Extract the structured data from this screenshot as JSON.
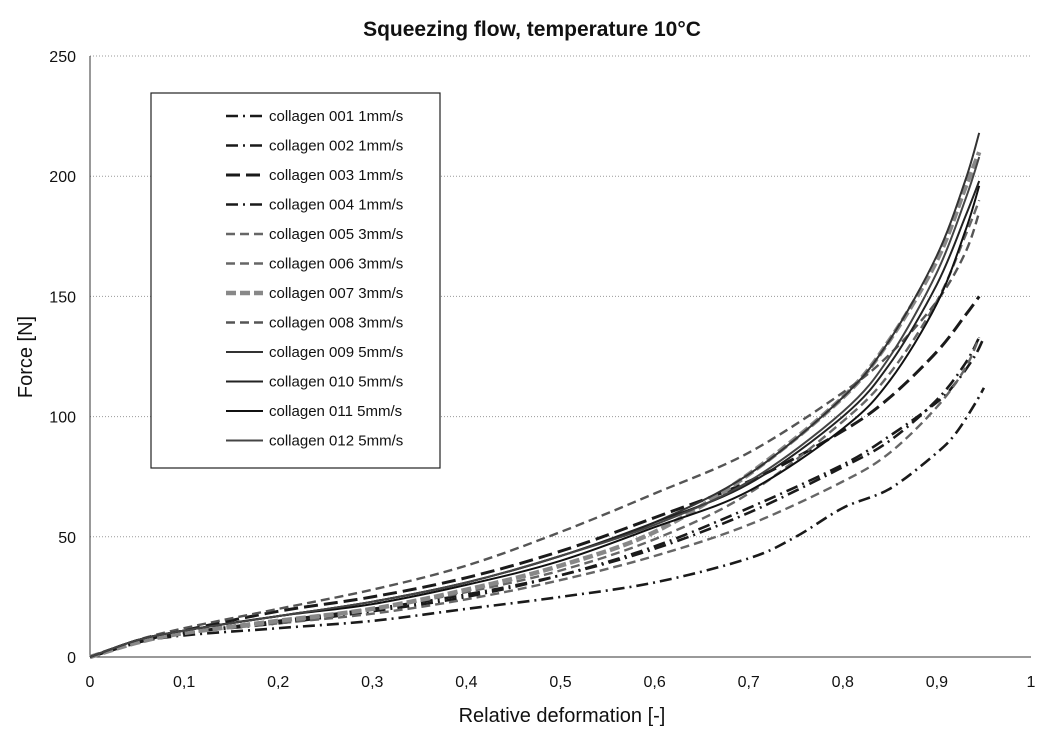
{
  "chart_data": {
    "type": "line",
    "title": "Squeezing flow, temperature 10°C",
    "xlabel": "Relative deformation [-]",
    "ylabel": "Force [N]",
    "xlim": [
      0,
      1
    ],
    "ylim": [
      0,
      250
    ],
    "xticks": [
      "0",
      "0,1",
      "0,2",
      "0,3",
      "0,4",
      "0,5",
      "0,6",
      "0,7",
      "0,8",
      "0,9",
      "1"
    ],
    "yticks": [
      "0",
      "50",
      "100",
      "150",
      "200",
      "250"
    ],
    "grid": "horizontal dotted",
    "legend_position": "top-left",
    "series": [
      {
        "name": "collagen 001 1mm/s",
        "color": "#1a1a1a",
        "style": "dash-dot",
        "x": [
          0,
          0.05,
          0.1,
          0.2,
          0.3,
          0.4,
          0.5,
          0.6,
          0.7,
          0.75,
          0.8,
          0.85,
          0.9,
          0.92,
          0.94,
          0.95
        ],
        "y": [
          0,
          6,
          9,
          12,
          15,
          20,
          25,
          31,
          41,
          50,
          62,
          70,
          85,
          93,
          105,
          112
        ]
      },
      {
        "name": "collagen 002 1mm/s",
        "color": "#1a1a1a",
        "style": "dash-dot",
        "x": [
          0,
          0.05,
          0.1,
          0.2,
          0.3,
          0.4,
          0.5,
          0.6,
          0.7,
          0.8,
          0.85,
          0.9,
          0.92,
          0.94,
          0.95
        ],
        "y": [
          0,
          6,
          10,
          14,
          19,
          25,
          34,
          46,
          62,
          80,
          92,
          106,
          114,
          125,
          133
        ]
      },
      {
        "name": "collagen 003 1mm/s",
        "color": "#1a1a1a",
        "style": "long-dash",
        "x": [
          0,
          0.05,
          0.1,
          0.2,
          0.3,
          0.4,
          0.5,
          0.6,
          0.7,
          0.8,
          0.85,
          0.9,
          0.93,
          0.945
        ],
        "y": [
          0,
          6,
          11,
          19,
          25,
          33,
          44,
          58,
          73,
          94,
          108,
          127,
          142,
          150
        ]
      },
      {
        "name": "collagen 004 1mm/s",
        "color": "#1a1a1a",
        "style": "dash-dot",
        "x": [
          0,
          0.05,
          0.1,
          0.2,
          0.3,
          0.4,
          0.5,
          0.6,
          0.7,
          0.8,
          0.85,
          0.9,
          0.93,
          0.945
        ],
        "y": [
          0,
          6,
          10,
          15,
          20,
          26,
          34,
          45,
          60,
          79,
          90,
          107,
          122,
          133
        ]
      },
      {
        "name": "collagen 005 3mm/s",
        "color": "#666666",
        "style": "dashed",
        "x": [
          0,
          0.05,
          0.1,
          0.2,
          0.3,
          0.4,
          0.5,
          0.6,
          0.7,
          0.8,
          0.85,
          0.9,
          0.93,
          0.945
        ],
        "y": [
          0,
          6,
          10,
          14,
          18,
          24,
          32,
          42,
          55,
          73,
          85,
          104,
          120,
          133
        ]
      },
      {
        "name": "collagen 006 3mm/s",
        "color": "#666666",
        "style": "dashed",
        "x": [
          0,
          0.05,
          0.1,
          0.2,
          0.3,
          0.4,
          0.5,
          0.6,
          0.7,
          0.8,
          0.85,
          0.9,
          0.93,
          0.945
        ],
        "y": [
          0,
          6,
          10,
          15,
          20,
          27,
          36,
          49,
          68,
          98,
          118,
          148,
          175,
          190
        ]
      },
      {
        "name": "collagen 007 3mm/s",
        "color": "#888888",
        "style": "thick-dashed",
        "x": [
          0,
          0.05,
          0.1,
          0.2,
          0.3,
          0.4,
          0.5,
          0.6,
          0.7,
          0.8,
          0.85,
          0.9,
          0.93,
          0.945
        ],
        "y": [
          0,
          6,
          10,
          15,
          20,
          28,
          38,
          52,
          76,
          108,
          132,
          165,
          195,
          210
        ]
      },
      {
        "name": "collagen 008 3mm/s",
        "color": "#555555",
        "style": "dashed",
        "x": [
          0,
          0.05,
          0.1,
          0.2,
          0.3,
          0.4,
          0.5,
          0.6,
          0.7,
          0.8,
          0.85,
          0.9,
          0.93,
          0.945
        ],
        "y": [
          0,
          7,
          12,
          20,
          28,
          38,
          52,
          68,
          85,
          110,
          126,
          148,
          168,
          185
        ]
      },
      {
        "name": "collagen 009 5mm/s",
        "color": "#333333",
        "style": "solid",
        "x": [
          0,
          0.05,
          0.1,
          0.2,
          0.3,
          0.4,
          0.5,
          0.6,
          0.7,
          0.8,
          0.85,
          0.9,
          0.93,
          0.945
        ],
        "y": [
          0,
          7,
          11,
          17,
          23,
          31,
          42,
          56,
          76,
          108,
          132,
          167,
          198,
          218
        ]
      },
      {
        "name": "collagen 010 5mm/s",
        "color": "#222222",
        "style": "solid",
        "x": [
          0,
          0.05,
          0.1,
          0.2,
          0.3,
          0.4,
          0.5,
          0.6,
          0.7,
          0.8,
          0.85,
          0.9,
          0.93,
          0.945
        ],
        "y": [
          0,
          7,
          11,
          17,
          23,
          31,
          42,
          56,
          72,
          100,
          122,
          155,
          183,
          198
        ]
      },
      {
        "name": "collagen 011 5mm/s",
        "color": "#111111",
        "style": "solid",
        "x": [
          0,
          0.05,
          0.1,
          0.2,
          0.3,
          0.4,
          0.5,
          0.6,
          0.7,
          0.8,
          0.85,
          0.9,
          0.93,
          0.945
        ],
        "y": [
          0,
          7,
          11,
          17,
          22,
          30,
          40,
          54,
          69,
          95,
          115,
          147,
          177,
          196
        ]
      },
      {
        "name": "collagen 012 5mm/s",
        "color": "#444444",
        "style": "solid",
        "x": [
          0,
          0.05,
          0.1,
          0.2,
          0.3,
          0.4,
          0.5,
          0.6,
          0.7,
          0.8,
          0.85,
          0.9,
          0.93,
          0.945
        ],
        "y": [
          0,
          7,
          11,
          17,
          23,
          31,
          42,
          55,
          73,
          102,
          125,
          160,
          190,
          208
        ]
      }
    ]
  }
}
